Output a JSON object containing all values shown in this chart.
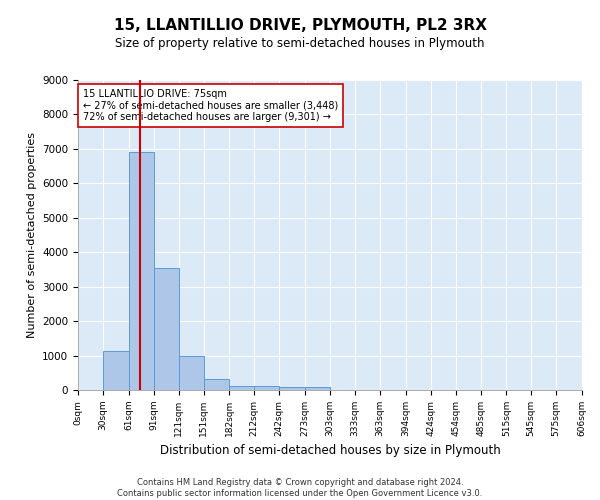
{
  "title": "15, LLANTILLIO DRIVE, PLYMOUTH, PL2 3RX",
  "subtitle": "Size of property relative to semi-detached houses in Plymouth",
  "xlabel": "Distribution of semi-detached houses by size in Plymouth",
  "ylabel": "Number of semi-detached properties",
  "bar_color": "#aec6e8",
  "bar_edge_color": "#5b9bd5",
  "background_color": "#dce9f7",
  "grid_color": "#ffffff",
  "vline_color": "#cc0000",
  "vline_x": 75,
  "annotation_text": "15 LLANTILLIO DRIVE: 75sqm\n← 27% of semi-detached houses are smaller (3,448)\n72% of semi-detached houses are larger (9,301) →",
  "annotation_box_color": "#ffffff",
  "annotation_box_edge": "#cc0000",
  "footer": "Contains HM Land Registry data © Crown copyright and database right 2024.\nContains public sector information licensed under the Open Government Licence v3.0.",
  "bin_edges": [
    0,
    30,
    61,
    91,
    121,
    151,
    182,
    212,
    242,
    273,
    303,
    333,
    363,
    394,
    424,
    454,
    485,
    515,
    545,
    575,
    606
  ],
  "bar_heights": [
    0,
    1120,
    6900,
    3550,
    1000,
    325,
    130,
    120,
    100,
    80,
    0,
    0,
    0,
    0,
    0,
    0,
    0,
    0,
    0,
    0
  ],
  "ylim": [
    0,
    9000
  ],
  "yticks": [
    0,
    1000,
    2000,
    3000,
    4000,
    5000,
    6000,
    7000,
    8000,
    9000
  ],
  "tick_labels": [
    "0sqm",
    "30sqm",
    "61sqm",
    "91sqm",
    "121sqm",
    "151sqm",
    "182sqm",
    "212sqm",
    "242sqm",
    "273sqm",
    "303sqm",
    "333sqm",
    "363sqm",
    "394sqm",
    "424sqm",
    "454sqm",
    "485sqm",
    "515sqm",
    "545sqm",
    "575sqm",
    "606sqm"
  ]
}
